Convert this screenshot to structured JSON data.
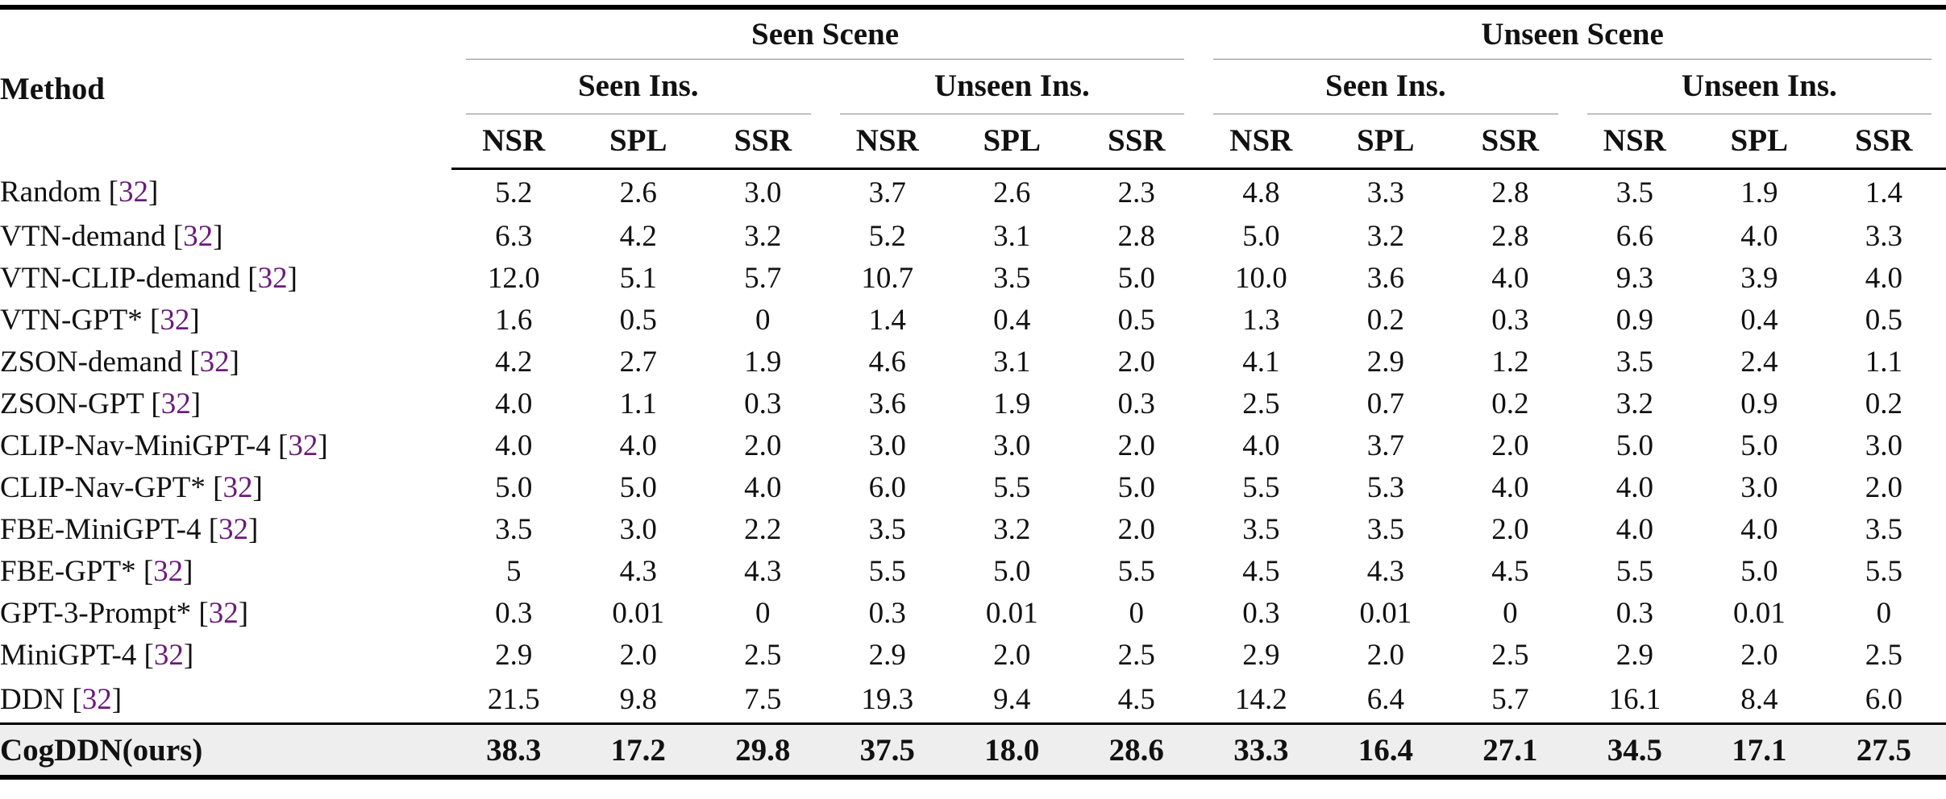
{
  "table": {
    "method_header": "Method",
    "scenes": [
      "Seen Scene",
      "Unseen Scene"
    ],
    "instruction_groups": [
      "Seen Ins.",
      "Unseen Ins.",
      "Seen Ins.",
      "Unseen Ins."
    ],
    "metrics": [
      "NSR",
      "SPL",
      "SSR",
      "NSR",
      "SPL",
      "SSR",
      "NSR",
      "SPL",
      "SSR",
      "NSR",
      "SPL",
      "SSR"
    ],
    "rows": [
      {
        "method": "Random",
        "cite": "32",
        "values": [
          "5.2",
          "2.6",
          "3.0",
          "3.7",
          "2.6",
          "2.3",
          "4.8",
          "3.3",
          "2.8",
          "3.5",
          "1.9",
          "1.4"
        ]
      },
      {
        "method": "VTN-demand",
        "cite": "32",
        "values": [
          "6.3",
          "4.2",
          "3.2",
          "5.2",
          "3.1",
          "2.8",
          "5.0",
          "3.2",
          "2.8",
          "6.6",
          "4.0",
          "3.3"
        ]
      },
      {
        "method": "VTN-CLIP-demand",
        "cite": "32",
        "values": [
          "12.0",
          "5.1",
          "5.7",
          "10.7",
          "3.5",
          "5.0",
          "10.0",
          "3.6",
          "4.0",
          "9.3",
          "3.9",
          "4.0"
        ]
      },
      {
        "method": "VTN-GPT*",
        "cite": "32",
        "values": [
          "1.6",
          "0.5",
          "0",
          "1.4",
          "0.4",
          "0.5",
          "1.3",
          "0.2",
          "0.3",
          "0.9",
          "0.4",
          "0.5"
        ]
      },
      {
        "method": "ZSON-demand",
        "cite": "32",
        "values": [
          "4.2",
          "2.7",
          "1.9",
          "4.6",
          "3.1",
          "2.0",
          "4.1",
          "2.9",
          "1.2",
          "3.5",
          "2.4",
          "1.1"
        ]
      },
      {
        "method": "ZSON-GPT",
        "cite": "32",
        "values": [
          "4.0",
          "1.1",
          "0.3",
          "3.6",
          "1.9",
          "0.3",
          "2.5",
          "0.7",
          "0.2",
          "3.2",
          "0.9",
          "0.2"
        ]
      },
      {
        "method": "CLIP-Nav-MiniGPT-4",
        "cite": "32",
        "values": [
          "4.0",
          "4.0",
          "2.0",
          "3.0",
          "3.0",
          "2.0",
          "4.0",
          "3.7",
          "2.0",
          "5.0",
          "5.0",
          "3.0"
        ]
      },
      {
        "method": "CLIP-Nav-GPT*",
        "cite": "32",
        "values": [
          "5.0",
          "5.0",
          "4.0",
          "6.0",
          "5.5",
          "5.0",
          "5.5",
          "5.3",
          "4.0",
          "4.0",
          "3.0",
          "2.0"
        ]
      },
      {
        "method": "FBE-MiniGPT-4",
        "cite": "32",
        "values": [
          "3.5",
          "3.0",
          "2.2",
          "3.5",
          "3.2",
          "2.0",
          "3.5",
          "3.5",
          "2.0",
          "4.0",
          "4.0",
          "3.5"
        ]
      },
      {
        "method": "FBE-GPT*",
        "cite": "32",
        "values": [
          "5",
          "4.3",
          "4.3",
          "5.5",
          "5.0",
          "5.5",
          "4.5",
          "4.3",
          "4.5",
          "5.5",
          "5.0",
          "5.5"
        ]
      },
      {
        "method": "GPT-3-Prompt*",
        "cite": "32",
        "values": [
          "0.3",
          "0.01",
          "0",
          "0.3",
          "0.01",
          "0",
          "0.3",
          "0.01",
          "0",
          "0.3",
          "0.01",
          "0"
        ]
      },
      {
        "method": "MiniGPT-4",
        "cite": "32",
        "values": [
          "2.9",
          "2.0",
          "2.5",
          "2.9",
          "2.0",
          "2.5",
          "2.9",
          "2.0",
          "2.5",
          "2.9",
          "2.0",
          "2.5"
        ]
      },
      {
        "method": "DDN",
        "cite": "32",
        "values": [
          "21.5",
          "9.8",
          "7.5",
          "19.3",
          "9.4",
          "4.5",
          "14.2",
          "6.4",
          "5.7",
          "16.1",
          "8.4",
          "6.0"
        ]
      }
    ],
    "ours": {
      "method": "CogDDN(ours)",
      "values": [
        "38.3",
        "17.2",
        "29.8",
        "37.5",
        "18.0",
        "28.6",
        "33.3",
        "16.4",
        "27.1",
        "34.5",
        "17.1",
        "27.5"
      ]
    }
  }
}
